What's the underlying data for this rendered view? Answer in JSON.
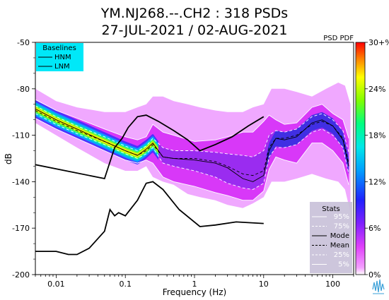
{
  "chart_data": {
    "type": "heatmap",
    "title_line1": "YM.NJ268.--.CH2 : 318 PSDs",
    "title_line2": "27-JUL-2021 / 02-AUG-2021",
    "xlabel": "Frequency (Hz)",
    "ylabel": "dB",
    "x_scale": "log",
    "xlim": [
      0.005,
      200
    ],
    "ylim": [
      -200,
      -50
    ],
    "x_ticks": [
      {
        "value": 0.01,
        "label": "0.01"
      },
      {
        "value": 0.1,
        "label": "0.1"
      },
      {
        "value": 1,
        "label": "1"
      },
      {
        "value": 10,
        "label": "10"
      },
      {
        "value": 100,
        "label": "100"
      }
    ],
    "y_ticks": [
      {
        "value": -50,
        "label": "-50"
      },
      {
        "value": -80,
        "label": "-80"
      },
      {
        "value": -110,
        "label": "-110"
      },
      {
        "value": -140,
        "label": "-140"
      },
      {
        "value": -170,
        "label": "-170"
      },
      {
        "value": -200,
        "label": "-200"
      }
    ],
    "colorbar": {
      "title": "PSD PDF",
      "ticks": [
        "30+%",
        "24%",
        "18%",
        "12%",
        "6%",
        "0%"
      ]
    },
    "baselines": {
      "title": "Baselines",
      "entries": [
        "HNM",
        "LNM"
      ]
    },
    "stats": {
      "title": "Stats",
      "entries": [
        {
          "label": "95%",
          "style": "solid",
          "color": "#ffffff"
        },
        {
          "label": "75%",
          "style": "dashed",
          "color": "#ffffff"
        },
        {
          "label": "Mode",
          "style": "solid",
          "color": "#000000"
        },
        {
          "label": "Mean",
          "style": "dashed",
          "color": "#000000"
        },
        {
          "label": "25%",
          "style": "dashed",
          "color": "#ffffff"
        },
        {
          "label": "5%",
          "style": "solid",
          "color": "#ffffff"
        }
      ]
    },
    "hnm": {
      "x": [
        0.005,
        0.05,
        0.07,
        0.09,
        0.11,
        0.15,
        0.2,
        0.3,
        0.5,
        0.8,
        1.2,
        2,
        3.5,
        6,
        10
      ],
      "y": [
        -129,
        -138,
        -118,
        -112,
        -105,
        -98,
        -97,
        -101,
        -107,
        -113,
        -120,
        -116,
        -111,
        -104,
        -98
      ]
    },
    "lnm": {
      "x": [
        0.005,
        0.01,
        0.015,
        0.02,
        0.03,
        0.05,
        0.06,
        0.07,
        0.08,
        0.1,
        0.15,
        0.2,
        0.25,
        0.35,
        0.6,
        1.2,
        2,
        4,
        10
      ],
      "y": [
        -185,
        -185,
        -187,
        -187,
        -183,
        -172,
        -158,
        -162,
        -160,
        -162,
        -152,
        -141,
        -140,
        -145,
        -158,
        -169,
        -168,
        -166,
        -167
      ]
    },
    "pdf_band": {
      "x": [
        0.005,
        0.01,
        0.02,
        0.05,
        0.1,
        0.15,
        0.2,
        0.25,
        0.35,
        0.5,
        0.8,
        1.2,
        2,
        3,
        5,
        7,
        10,
        13,
        20,
        30,
        50,
        80,
        120,
        150,
        180
      ],
      "upper": [
        -80,
        -88,
        -92,
        -95,
        -95,
        -92,
        -90,
        -85,
        -85,
        -88,
        -90,
        -92,
        -94,
        -95,
        -95,
        -92,
        -90,
        -80,
        -80,
        -82,
        -85,
        -80,
        -76,
        -78,
        -90
      ],
      "lower": [
        -102,
        -110,
        -118,
        -128,
        -133,
        -133,
        -130,
        -137,
        -140,
        -142,
        -148,
        -150,
        -152,
        -155,
        -157,
        -154,
        -150,
        -140,
        -140,
        -138,
        -135,
        -138,
        -140,
        -145,
        -160
      ]
    },
    "mode": {
      "x": [
        0.005,
        0.01,
        0.02,
        0.05,
        0.1,
        0.15,
        0.2,
        0.25,
        0.35,
        0.5,
        1,
        2,
        3,
        5,
        7,
        10,
        12,
        15,
        20,
        30,
        50,
        70,
        100,
        140,
        170
      ],
      "y": [
        -93,
        -100,
        -106,
        -114,
        -120,
        -123,
        -119,
        -115,
        -124,
        -125,
        -126,
        -128,
        -131,
        -138,
        -140,
        -136,
        -120,
        -112,
        -113,
        -111,
        -102,
        -100,
        -104,
        -113,
        -130
      ]
    },
    "mean": {
      "x": [
        0.005,
        0.01,
        0.02,
        0.05,
        0.1,
        0.15,
        0.2,
        0.25,
        0.35,
        0.5,
        1,
        2,
        3,
        5,
        7,
        10,
        12,
        15,
        20,
        30,
        50,
        70,
        100,
        140,
        170
      ],
      "y": [
        -94,
        -101,
        -107,
        -114,
        -120,
        -123,
        -120,
        -116,
        -124,
        -125,
        -125,
        -127,
        -130,
        -135,
        -136,
        -133,
        -118,
        -112,
        -112,
        -110,
        -103,
        -101,
        -104,
        -112,
        -128
      ]
    },
    "p95": {
      "x": [
        0.005,
        0.01,
        0.02,
        0.05,
        0.1,
        0.15,
        0.2,
        0.25,
        0.35,
        0.5,
        1,
        2,
        3,
        5,
        7,
        10,
        12,
        15,
        20,
        30,
        50,
        70,
        100,
        140,
        170
      ],
      "y": [
        -87,
        -94,
        -99,
        -106,
        -111,
        -113,
        -111,
        -103,
        -108,
        -110,
        -114,
        -113,
        -111,
        -108,
        -108,
        -101,
        -97,
        -100,
        -103,
        -102,
        -92,
        -90,
        -96,
        -100,
        -112
      ]
    },
    "p75": {
      "x": [
        0.005,
        0.01,
        0.02,
        0.05,
        0.1,
        0.15,
        0.2,
        0.25,
        0.35,
        0.5,
        1,
        2,
        3,
        5,
        7,
        10,
        12,
        15,
        20,
        30,
        50,
        70,
        100,
        140,
        170
      ],
      "y": [
        -91,
        -98,
        -104,
        -111,
        -117,
        -120,
        -117,
        -112,
        -118,
        -120,
        -120,
        -121,
        -122,
        -123,
        -124,
        -120,
        -110,
        -107,
        -108,
        -106,
        -98,
        -96,
        -100,
        -107,
        -121
      ]
    },
    "p25": {
      "x": [
        0.005,
        0.01,
        0.02,
        0.05,
        0.1,
        0.15,
        0.2,
        0.25,
        0.35,
        0.5,
        1,
        2,
        3,
        5,
        7,
        10,
        12,
        15,
        20,
        30,
        50,
        70,
        100,
        140,
        170
      ],
      "y": [
        -96,
        -103,
        -109,
        -116,
        -122,
        -125,
        -122,
        -118,
        -128,
        -130,
        -133,
        -137,
        -141,
        -144,
        -145,
        -141,
        -124,
        -118,
        -118,
        -116,
        -108,
        -106,
        -110,
        -118,
        -135
      ]
    },
    "p5": {
      "x": [
        0.005,
        0.01,
        0.02,
        0.05,
        0.1,
        0.15,
        0.2,
        0.25,
        0.35,
        0.5,
        1,
        2,
        3,
        5,
        7,
        10,
        12,
        15,
        20,
        30,
        50,
        70,
        100,
        140,
        170
      ],
      "y": [
        -99,
        -106,
        -112,
        -120,
        -126,
        -128,
        -126,
        -128,
        -137,
        -140,
        -143,
        -147,
        -149,
        -152,
        -152,
        -146,
        -132,
        -124,
        -126,
        -128,
        -115,
        -115,
        -120,
        -128,
        -142
      ]
    }
  }
}
